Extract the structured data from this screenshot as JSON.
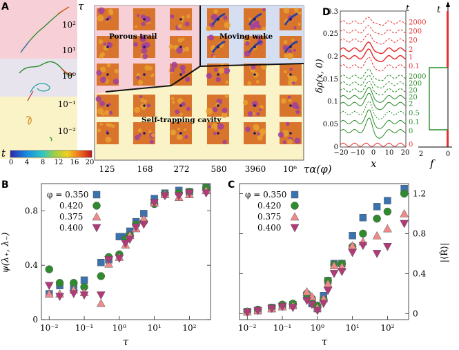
{
  "colors": {
    "phi_0350": "#3b73b0",
    "phi_0420": "#2e8b2e",
    "phi_0375": "#f08a8a",
    "phi_0400": "#b23a78",
    "red_curves": "#e53030",
    "green_curves": "#2a8a2a",
    "pink_region": "#f6d0d6",
    "blue_region": "#d6def2",
    "yellow_region": "#fbf3c8"
  },
  "panel_a": {
    "letter": "A",
    "tau_label": "τ",
    "t_label": "t",
    "y_tick_labels": [
      "10²",
      "10¹",
      "10⁰",
      "10⁻¹",
      "10⁻²"
    ],
    "x_tick_labels": [
      "125",
      "168",
      "272",
      "580",
      "3960",
      "10⁶"
    ],
    "x_label": "τα(φ)",
    "colorbar_ticks": [
      "0",
      "4",
      "8",
      "12",
      "16",
      "20"
    ],
    "region_porous": "Porous trail",
    "region_wake": "Moving wake",
    "region_cavity": "Self-trapping cavity"
  },
  "panel_d": {
    "letter": "D",
    "y_label": "δρ(x, 0)",
    "x_label": "x",
    "y_tick_labels": [
      "0.3",
      "0.25",
      "0.2",
      "0.15",
      "0.1",
      "0.05",
      "0"
    ],
    "x_tick_labels": [
      "−20",
      "−10",
      "0",
      "10",
      "20"
    ],
    "t_label_left": "t",
    "t_label_right": "t",
    "f_label": "f",
    "f_ticks": [
      "2",
      "0"
    ],
    "red_t_labels": [
      "2000",
      "200",
      "20",
      "2",
      "1",
      "0.1",
      "0"
    ],
    "green_t_labels": [
      "2000",
      "200",
      "20",
      "20",
      "2",
      "0.5",
      "0.1",
      "0"
    ]
  },
  "chart_data": [
    {
      "type": "scatter",
      "panel": "B",
      "x_scale": "log",
      "xlabel": "τ",
      "ylabel": "ψ(λ₊, λ₋)",
      "xlim": [
        0.006,
        400
      ],
      "ylim": [
        0,
        1.0
      ],
      "x_tick_labels": [
        "10⁻²",
        "10⁻¹",
        "10⁰",
        "10¹",
        "10²"
      ],
      "y_tick_labels": [
        "0",
        "0.4",
        "0.8"
      ],
      "legend_placement": "top-left",
      "series": [
        {
          "name": "φ = 0.350",
          "marker": "square",
          "x": [
            0.01,
            0.02,
            0.05,
            0.1,
            0.3,
            0.5,
            1,
            1.5,
            2,
            3,
            5,
            10,
            20,
            50,
            100,
            300
          ],
          "y": [
            0.19,
            0.25,
            0.24,
            0.29,
            0.42,
            0.44,
            0.61,
            0.61,
            0.65,
            0.72,
            0.78,
            0.89,
            0.93,
            0.95,
            0.94,
            0.97
          ]
        },
        {
          "name": "0.420",
          "marker": "circle",
          "x": [
            0.01,
            0.02,
            0.05,
            0.1,
            0.3,
            0.5,
            1,
            1.5,
            2,
            3,
            5,
            10,
            20,
            50,
            100,
            300
          ],
          "y": [
            0.37,
            0.27,
            0.27,
            0.24,
            0.32,
            0.46,
            0.48,
            0.59,
            0.62,
            0.7,
            0.72,
            0.85,
            0.92,
            0.93,
            0.94,
            0.97
          ]
        },
        {
          "name": "0.375",
          "marker": "triangle-up",
          "x": [
            0.01,
            0.02,
            0.05,
            0.1,
            0.3,
            0.5,
            1,
            1.5,
            2,
            3,
            5,
            10,
            20,
            50,
            100,
            300
          ],
          "y": [
            0.19,
            0.19,
            0.22,
            0.2,
            0.12,
            0.41,
            0.46,
            0.55,
            0.62,
            0.67,
            0.74,
            0.86,
            0.92,
            0.9,
            0.92,
            0.95
          ]
        },
        {
          "name": "0.400",
          "marker": "triangle-down",
          "x": [
            0.01,
            0.02,
            0.05,
            0.1,
            0.3,
            0.5,
            1,
            1.5,
            2,
            3,
            5,
            10,
            20,
            50,
            100,
            300
          ],
          "y": [
            0.25,
            0.17,
            0.19,
            0.18,
            0.18,
            0.44,
            0.45,
            0.56,
            0.59,
            0.68,
            0.7,
            0.86,
            0.91,
            0.91,
            0.93,
            0.93
          ]
        }
      ]
    },
    {
      "type": "scatter",
      "panel": "C",
      "x_scale": "log",
      "xlabel": "τ",
      "ylabel": "|⟨Ṙ⟩|",
      "xlim": [
        0.006,
        400
      ],
      "ylim": [
        -0.06,
        1.3
      ],
      "x_tick_labels": [
        "10⁻²",
        "10⁻¹",
        "10⁰",
        "10¹",
        "10²"
      ],
      "y_tick_labels": [
        "0",
        "0.4",
        "0.8",
        "1.2"
      ],
      "y_axis_side": "right",
      "legend_placement": "top-left",
      "series": [
        {
          "name": "φ = 0.350",
          "marker": "square",
          "x": [
            0.01,
            0.02,
            0.05,
            0.1,
            0.2,
            0.5,
            0.7,
            1,
            1.5,
            2,
            3,
            5,
            10,
            20,
            50,
            100,
            300
          ],
          "y": [
            0.02,
            0.03,
            0.06,
            0.08,
            0.09,
            0.17,
            0.1,
            0.05,
            0.18,
            0.33,
            0.5,
            0.5,
            0.78,
            0.96,
            1.07,
            1.13,
            1.25
          ]
        },
        {
          "name": "0.420",
          "marker": "circle",
          "x": [
            0.01,
            0.02,
            0.05,
            0.1,
            0.2,
            0.5,
            0.7,
            1,
            1.5,
            2,
            3,
            5,
            10,
            20,
            50,
            100,
            300
          ],
          "y": [
            0.02,
            0.04,
            0.06,
            0.09,
            0.1,
            0.2,
            0.15,
            0.08,
            0.14,
            0.33,
            0.49,
            0.5,
            0.67,
            0.8,
            0.95,
            1.02,
            1.2
          ]
        },
        {
          "name": "0.375",
          "marker": "triangle-up",
          "x": [
            0.01,
            0.02,
            0.05,
            0.1,
            0.2,
            0.5,
            0.7,
            1,
            1.5,
            2,
            3,
            5,
            10,
            20,
            50,
            100,
            300
          ],
          "y": [
            0.02,
            0.03,
            0.05,
            0.07,
            0.08,
            0.22,
            0.17,
            0.06,
            0.15,
            0.3,
            0.48,
            0.47,
            0.68,
            0.72,
            0.78,
            0.85,
            1.0
          ]
        },
        {
          "name": "0.400",
          "marker": "triangle-down",
          "x": [
            0.01,
            0.02,
            0.05,
            0.1,
            0.2,
            0.5,
            0.7,
            1,
            1.5,
            2,
            3,
            5,
            10,
            20,
            50,
            100,
            300
          ],
          "y": [
            0.01,
            0.03,
            0.05,
            0.07,
            0.06,
            0.13,
            0.09,
            0.03,
            0.1,
            0.23,
            0.4,
            0.42,
            0.61,
            0.68,
            0.6,
            0.67,
            0.9
          ]
        }
      ]
    }
  ]
}
